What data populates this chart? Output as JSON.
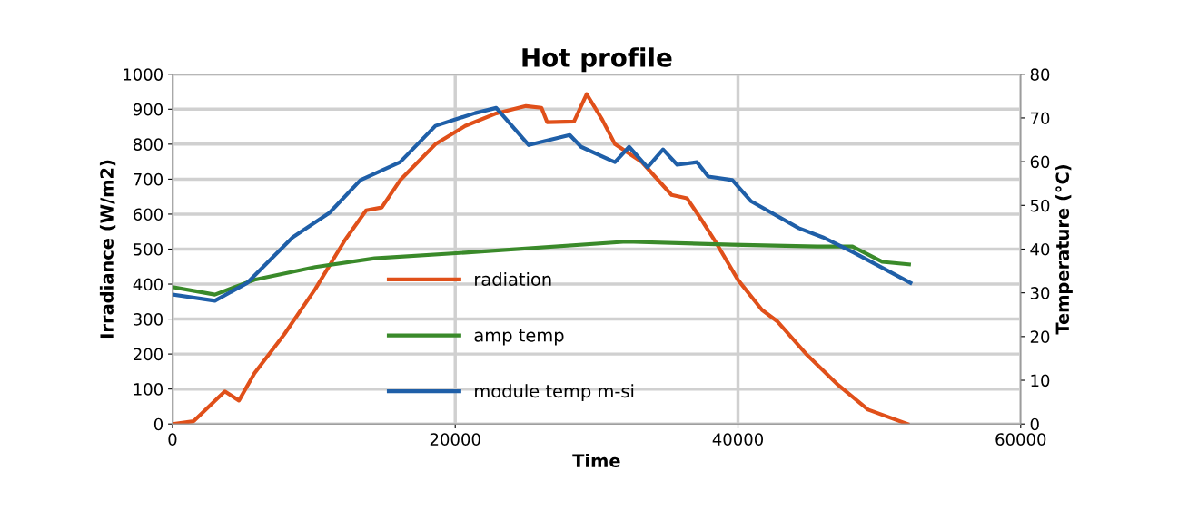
{
  "chart_data": {
    "type": "line",
    "title": "Hot profile",
    "xlabel": "Time",
    "ylabel": "Irradiance (W/m2)",
    "y2label": "Temperature (°C)",
    "xlim": [
      0,
      60000
    ],
    "xticks": [
      0,
      20000,
      40000,
      60000
    ],
    "ylim": [
      0,
      1000
    ],
    "yticks": [
      0,
      100,
      200,
      300,
      400,
      500,
      600,
      700,
      800,
      900,
      1000
    ],
    "y2lim": [
      0,
      80
    ],
    "y2ticks": [
      0,
      10,
      20,
      30,
      40,
      50,
      60,
      70,
      80
    ],
    "grid": true,
    "legend": "lower center",
    "series": [
      {
        "name": "radiation",
        "color": "#e0501a",
        "x": [
          0,
          1500,
          3700,
          4700,
          5800,
          7900,
          10100,
          12200,
          13700,
          14800,
          16100,
          18600,
          20700,
          22900,
          25000,
          26100,
          26500,
          28400,
          29300,
          30400,
          31300,
          33200,
          35300,
          36400,
          37400,
          38500,
          40000,
          41700,
          42800,
          44900,
          47100,
          49200,
          52000
        ],
        "values": [
          0,
          8,
          93,
          67,
          145,
          256,
          386,
          526,
          611,
          619,
          697,
          800,
          852,
          888,
          909,
          904,
          863,
          865,
          943,
          870,
          800,
          749,
          655,
          645,
          585,
          515,
          412,
          326,
          293,
          197,
          111,
          41,
          0
        ]
      },
      {
        "name": "amp temp",
        "color": "#3a8a2a",
        "axis": "y2",
        "x": [
          0,
          3000,
          5800,
          10100,
          14300,
          20700,
          32100,
          39600,
          45600,
          48100,
          50200,
          52100
        ],
        "values": [
          31.3,
          29.6,
          33.0,
          35.9,
          37.9,
          39.2,
          41.7,
          41.0,
          40.6,
          40.6,
          37.1,
          36.5
        ]
      },
      {
        "name": "module temp m-si",
        "color": "#1f5fa8",
        "axis": "y2",
        "x": [
          0,
          3000,
          5300,
          8500,
          11100,
          13300,
          16100,
          18600,
          21400,
          22900,
          23800,
          25200,
          28100,
          28900,
          31000,
          31300,
          32300,
          33600,
          34700,
          35700,
          37100,
          37900,
          39600,
          40900,
          44300,
          46000,
          48200,
          52200
        ],
        "values": [
          29.6,
          28.2,
          32.3,
          42.7,
          48.3,
          55.8,
          59.9,
          68.2,
          71.1,
          72.3,
          69.0,
          63.8,
          66.1,
          63.4,
          60.3,
          59.9,
          63.4,
          58.7,
          62.8,
          59.3,
          59.9,
          56.6,
          55.8,
          51.0,
          44.8,
          42.7,
          39.2,
          32.3
        ]
      }
    ]
  }
}
